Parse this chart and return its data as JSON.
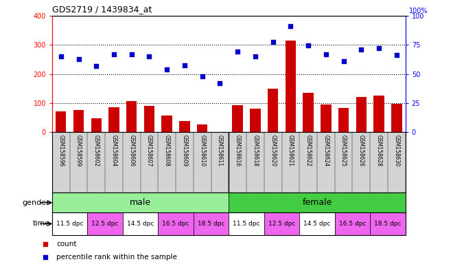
{
  "title": "GDS2719 / 1439834_at",
  "samples": [
    "GSM158596",
    "GSM158599",
    "GSM158602",
    "GSM158604",
    "GSM158606",
    "GSM158607",
    "GSM158608",
    "GSM158609",
    "GSM158610",
    "GSM158611",
    "GSM158616",
    "GSM158618",
    "GSM158620",
    "GSM158621",
    "GSM158622",
    "GSM158624",
    "GSM158625",
    "GSM158626",
    "GSM158628",
    "GSM158630"
  ],
  "counts": [
    72,
    75,
    48,
    85,
    107,
    90,
    57,
    38,
    27,
    0,
    93,
    80,
    148,
    315,
    136,
    95,
    83,
    120,
    125,
    97
  ],
  "percentiles": [
    65,
    63,
    57,
    67,
    67,
    65,
    54,
    57.5,
    48,
    42,
    69,
    65,
    77.5,
    91,
    74.5,
    67,
    61,
    71,
    72,
    66
  ],
  "left_ylim": [
    0,
    400
  ],
  "right_ylim": [
    0,
    100
  ],
  "left_yticks": [
    0,
    100,
    200,
    300,
    400
  ],
  "right_yticks": [
    0,
    25,
    50,
    75,
    100
  ],
  "bar_color": "#cc0000",
  "dot_color": "#0000cc",
  "gender_groups": [
    {
      "label": "male",
      "start": 0,
      "end": 10,
      "color": "#99ee99"
    },
    {
      "label": "female",
      "start": 10,
      "end": 20,
      "color": "#44cc44"
    }
  ],
  "time_groups": [
    {
      "label": "11.5 dpc",
      "start": 0,
      "end": 2,
      "color": "#ffffff"
    },
    {
      "label": "12.5 dpc",
      "start": 2,
      "end": 4,
      "color": "#ee66ee"
    },
    {
      "label": "14.5 dpc",
      "start": 4,
      "end": 6,
      "color": "#ffffff"
    },
    {
      "label": "16.5 dpc",
      "start": 6,
      "end": 8,
      "color": "#ee66ee"
    },
    {
      "label": "18.5 dpc",
      "start": 8,
      "end": 10,
      "color": "#ee66ee"
    },
    {
      "label": "11.5 dpc",
      "start": 10,
      "end": 12,
      "color": "#ffffff"
    },
    {
      "label": "12.5 dpc",
      "start": 12,
      "end": 14,
      "color": "#ee66ee"
    },
    {
      "label": "14.5 dpc",
      "start": 14,
      "end": 16,
      "color": "#ffffff"
    },
    {
      "label": "16.5 dpc",
      "start": 16,
      "end": 18,
      "color": "#ee66ee"
    },
    {
      "label": "18.5 dpc",
      "start": 18,
      "end": 20,
      "color": "#ee66ee"
    }
  ],
  "legend_items": [
    {
      "label": "count",
      "color": "#cc0000"
    },
    {
      "label": "percentile rank within the sample",
      "color": "#0000cc"
    }
  ],
  "xticklabel_bg": "#d3d3d3"
}
